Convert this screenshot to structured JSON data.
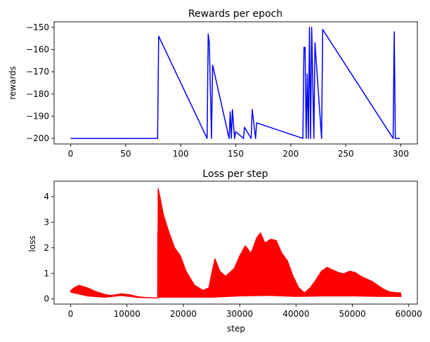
{
  "chart_data": [
    {
      "type": "line",
      "title": "Rewards per epoch",
      "xlabel": "",
      "ylabel": "rewards",
      "xlim": [
        -15,
        315
      ],
      "ylim": [
        -202.5,
        -147.5
      ],
      "xticks": [
        0,
        50,
        100,
        150,
        200,
        250,
        300
      ],
      "yticks": [
        -150,
        -160,
        -170,
        -180,
        -190,
        -200
      ],
      "xtick_labels": [
        "0",
        "50",
        "100",
        "150",
        "200",
        "250",
        "300"
      ],
      "ytick_labels": [
        "−150",
        "−160",
        "−170",
        "−180",
        "−190",
        "−200"
      ],
      "grid": false,
      "series": [
        {
          "name": "rewards",
          "color": "#0000ff",
          "baseline": -200,
          "x_range": [
            0,
            299
          ],
          "spikes": [
            {
              "x": 80,
              "y": -154
            },
            {
              "x": 125,
              "y": -153
            },
            {
              "x": 126,
              "y": -157
            },
            {
              "x": 129,
              "y": -167
            },
            {
              "x": 145,
              "y": -188
            },
            {
              "x": 147,
              "y": -187
            },
            {
              "x": 150,
              "y": -197
            },
            {
              "x": 158,
              "y": -195
            },
            {
              "x": 165,
              "y": -187
            },
            {
              "x": 169,
              "y": -193
            },
            {
              "x": 212,
              "y": -159
            },
            {
              "x": 213,
              "y": -159
            },
            {
              "x": 215,
              "y": -171
            },
            {
              "x": 217,
              "y": -150
            },
            {
              "x": 219,
              "y": -150
            },
            {
              "x": 222,
              "y": -157
            },
            {
              "x": 229,
              "y": -151
            },
            {
              "x": 294,
              "y": -152
            }
          ]
        }
      ]
    },
    {
      "type": "line",
      "title": "Loss per step",
      "xlabel": "step",
      "ylabel": "loss",
      "xlim": [
        -2930,
        61530
      ],
      "ylim": [
        -0.2,
        4.6
      ],
      "xticks": [
        0,
        10000,
        20000,
        30000,
        40000,
        50000,
        60000
      ],
      "yticks": [
        0,
        1,
        2,
        3,
        4
      ],
      "xtick_labels": [
        "0",
        "10000",
        "20000",
        "30000",
        "40000",
        "50000",
        "60000"
      ],
      "ytick_labels": [
        "0",
        "1",
        "2",
        "3",
        "4"
      ],
      "grid": false,
      "series": [
        {
          "name": "loss",
          "color": "#ff0000",
          "x_range": [
            0,
            58600
          ],
          "upper_envelope": [
            [
              0,
              0.33
            ],
            [
              600,
              0.45
            ],
            [
              1500,
              0.55
            ],
            [
              3000,
              0.45
            ],
            [
              4500,
              0.3
            ],
            [
              6000,
              0.2
            ],
            [
              7000,
              0.15
            ],
            [
              8000,
              0.18
            ],
            [
              9000,
              0.22
            ],
            [
              10500,
              0.18
            ],
            [
              12000,
              0.1
            ],
            [
              13500,
              0.07
            ],
            [
              15400,
              0.05
            ],
            [
              15500,
              4.35
            ],
            [
              15700,
              4.2
            ],
            [
              16500,
              3.3
            ],
            [
              17500,
              2.6
            ],
            [
              18500,
              2.0
            ],
            [
              19500,
              1.7
            ],
            [
              20500,
              1.1
            ],
            [
              22000,
              0.55
            ],
            [
              23500,
              0.35
            ],
            [
              24500,
              0.45
            ],
            [
              25000,
              1.0
            ],
            [
              25600,
              1.6
            ],
            [
              26500,
              1.1
            ],
            [
              27500,
              0.9
            ],
            [
              29000,
              1.2
            ],
            [
              30000,
              1.7
            ],
            [
              31000,
              2.1
            ],
            [
              32000,
              1.8
            ],
            [
              33000,
              2.4
            ],
            [
              33700,
              2.6
            ],
            [
              34500,
              2.2
            ],
            [
              35500,
              2.35
            ],
            [
              36500,
              2.3
            ],
            [
              37500,
              1.8
            ],
            [
              38500,
              1.5
            ],
            [
              39500,
              0.9
            ],
            [
              40500,
              0.45
            ],
            [
              41500,
              0.25
            ],
            [
              42500,
              0.45
            ],
            [
              43500,
              0.75
            ],
            [
              44500,
              1.1
            ],
            [
              45500,
              1.25
            ],
            [
              46500,
              1.15
            ],
            [
              47500,
              1.05
            ],
            [
              48500,
              1.0
            ],
            [
              49500,
              1.1
            ],
            [
              50500,
              1.05
            ],
            [
              51500,
              0.9
            ],
            [
              52500,
              0.8
            ],
            [
              53500,
              0.7
            ],
            [
              54500,
              0.55
            ],
            [
              55500,
              0.4
            ],
            [
              56500,
              0.3
            ],
            [
              57500,
              0.27
            ],
            [
              58600,
              0.25
            ]
          ],
          "lower_envelope": [
            [
              0,
              0.25
            ],
            [
              3000,
              0.1
            ],
            [
              6000,
              0.05
            ],
            [
              9000,
              0.12
            ],
            [
              12000,
              0.04
            ],
            [
              15400,
              0.02
            ],
            [
              15500,
              0.05
            ],
            [
              20000,
              0.05
            ],
            [
              25000,
              0.05
            ],
            [
              30000,
              0.1
            ],
            [
              35000,
              0.12
            ],
            [
              40000,
              0.08
            ],
            [
              45000,
              0.1
            ],
            [
              50000,
              0.1
            ],
            [
              55000,
              0.08
            ],
            [
              58600,
              0.08
            ]
          ]
        }
      ]
    }
  ]
}
